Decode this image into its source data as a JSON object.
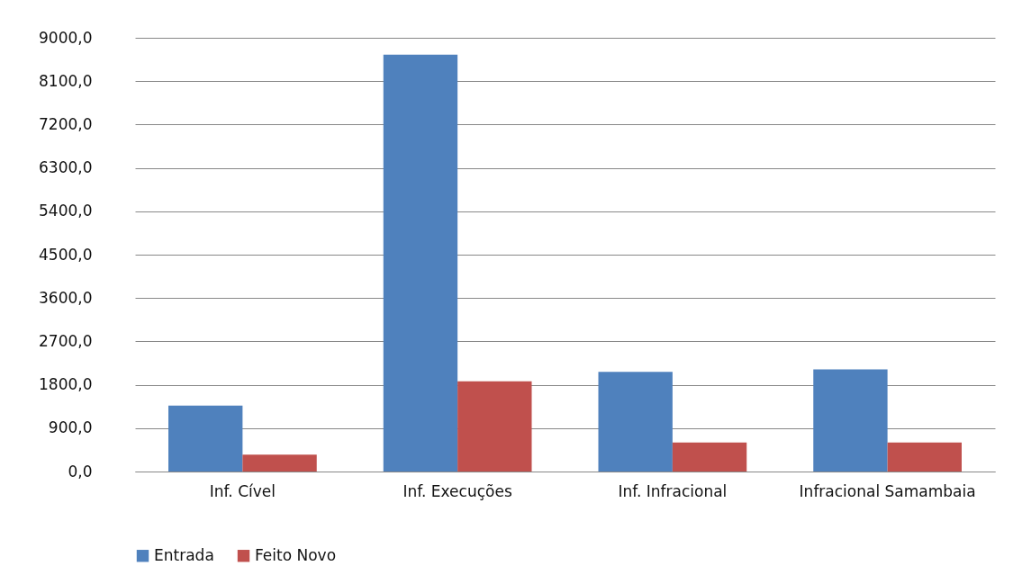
{
  "chart_data": {
    "type": "bar",
    "categories": [
      "Inf. Cível",
      "Inf. Execuções",
      "Inf. Infracional",
      "Infracional Samambaia"
    ],
    "series": [
      {
        "name": "Entrada",
        "color": "#4f81bd",
        "values": [
          1370,
          8650,
          2070,
          2120
        ]
      },
      {
        "name": "Feito Novo",
        "color": "#c0504d",
        "values": [
          350,
          1870,
          600,
          600
        ]
      }
    ],
    "ylim": [
      0,
      9000
    ],
    "yticks": [
      {
        "value": 0,
        "label": "0,0"
      },
      {
        "value": 900,
        "label": "900,0"
      },
      {
        "value": 1800,
        "label": "1800,0"
      },
      {
        "value": 2700,
        "label": "2700,0"
      },
      {
        "value": 3600,
        "label": "3600,0"
      },
      {
        "value": 4500,
        "label": "4500,0"
      },
      {
        "value": 5400,
        "label": "5400,0"
      },
      {
        "value": 6300,
        "label": "6300,0"
      },
      {
        "value": 7200,
        "label": "7200,0"
      },
      {
        "value": 8100,
        "label": "8100,0"
      },
      {
        "value": 9000,
        "label": "9000,0"
      }
    ],
    "grid": "y",
    "legend": "bottom"
  }
}
